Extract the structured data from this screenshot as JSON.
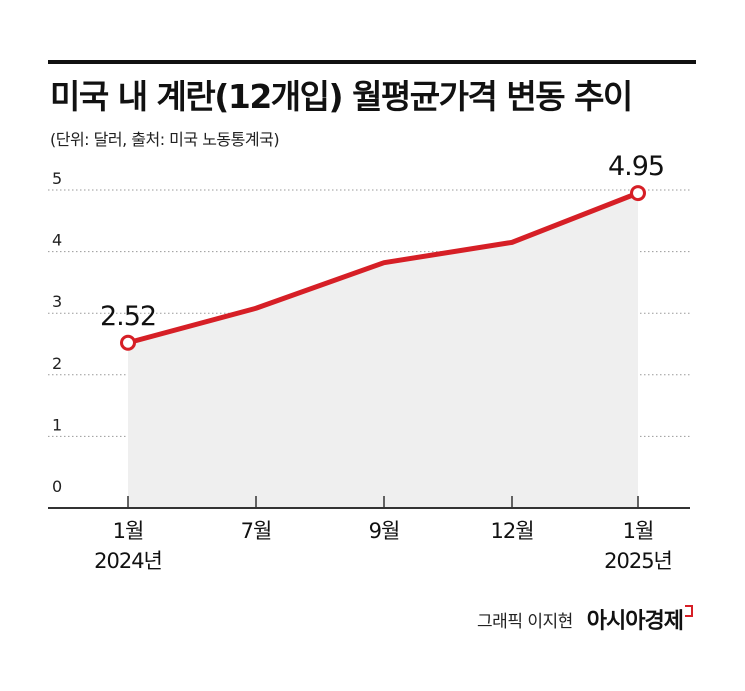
{
  "header": {
    "title": "미국 내 계란(12개입) 월평균가격 변동 추이",
    "subtitle": "(단위: 달러, 출처: 미국 노동통계국)"
  },
  "footer": {
    "credit": "그래픽 이지현",
    "brand": "아시아경제"
  },
  "colors": {
    "line": "#d61f26",
    "area": "#efefef",
    "grid": "#9a9a9a",
    "axis": "#333333"
  },
  "chart_data": {
    "type": "line",
    "title": "미국 내 계란(12개입) 월평균가격 변동 추이",
    "subtitle": "(단위: 달러, 출처: 미국 노동통계국)",
    "categories": [
      "1월\n2024년",
      "7월",
      "9월",
      "12월",
      "1월\n2025년"
    ],
    "values": [
      2.52,
      3.08,
      3.82,
      4.15,
      4.95
    ],
    "point_labels": [
      {
        "index": 0,
        "text": "2.52"
      },
      {
        "index": 4,
        "text": "4.95"
      }
    ],
    "y_ticks": [
      "0",
      "1",
      "2",
      "3",
      "4",
      "5"
    ],
    "ylim": [
      0,
      5
    ],
    "grid": true,
    "area_fill": true
  }
}
